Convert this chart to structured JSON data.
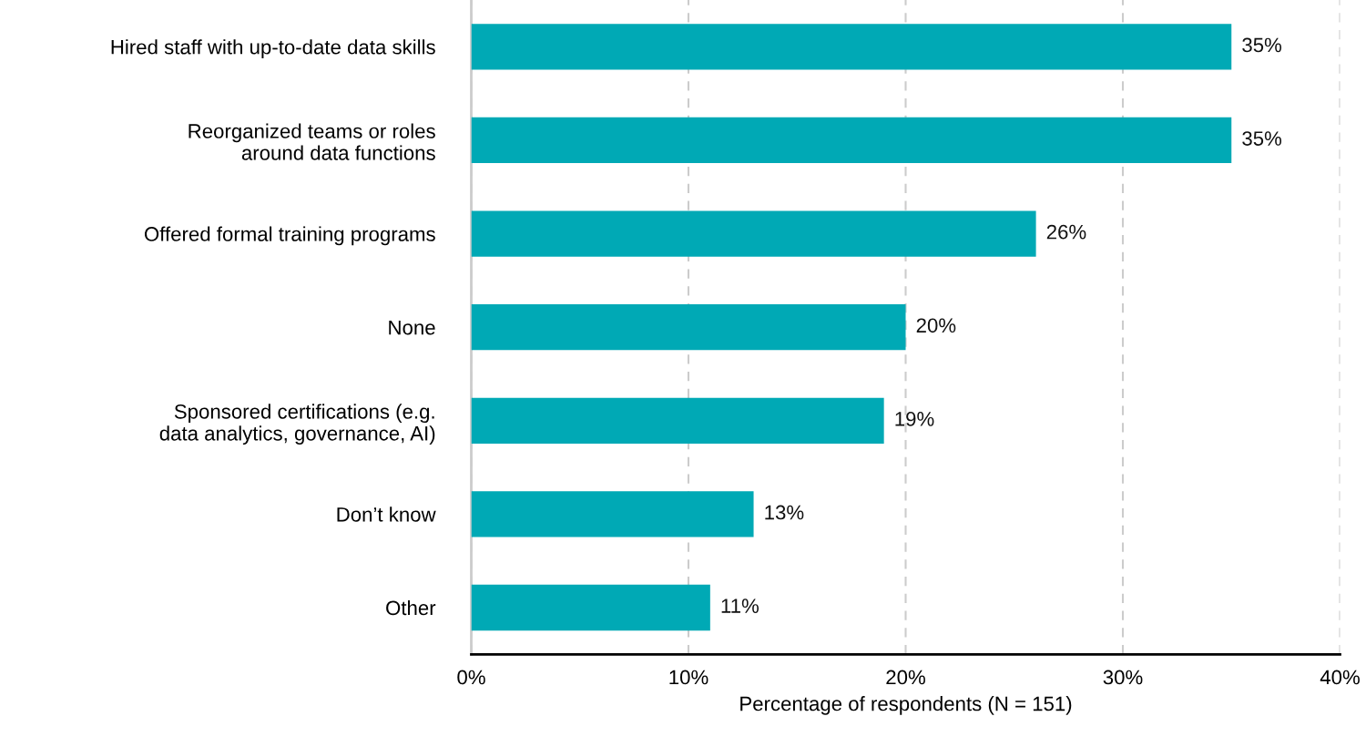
{
  "chart_data": {
    "type": "bar",
    "orientation": "horizontal",
    "xlabel": "Percentage of respondents (N = 151)",
    "categories": [
      "Hired staff with up-to-date data skills",
      "Reorganized teams or roles\naround data functions",
      "Offered formal training programs",
      "None",
      "Sponsored certifications (e.g.\ndata analytics, governance, AI)",
      "Don’t know",
      "Other"
    ],
    "values": [
      35,
      35,
      26,
      20,
      19,
      13,
      11
    ],
    "value_labels": [
      "35%",
      "35%",
      "26%",
      "20%",
      "19%",
      "13%",
      "11%"
    ],
    "color": "#00a9b5",
    "xlim": [
      0,
      40
    ],
    "xticks": [
      {
        "value": 0,
        "label": "0%"
      },
      {
        "value": 10,
        "label": "10%"
      },
      {
        "value": 20,
        "label": "20%"
      },
      {
        "value": 30,
        "label": "30%"
      },
      {
        "value": 40,
        "label": "40%"
      }
    ],
    "grid": "x",
    "legend": false
  }
}
